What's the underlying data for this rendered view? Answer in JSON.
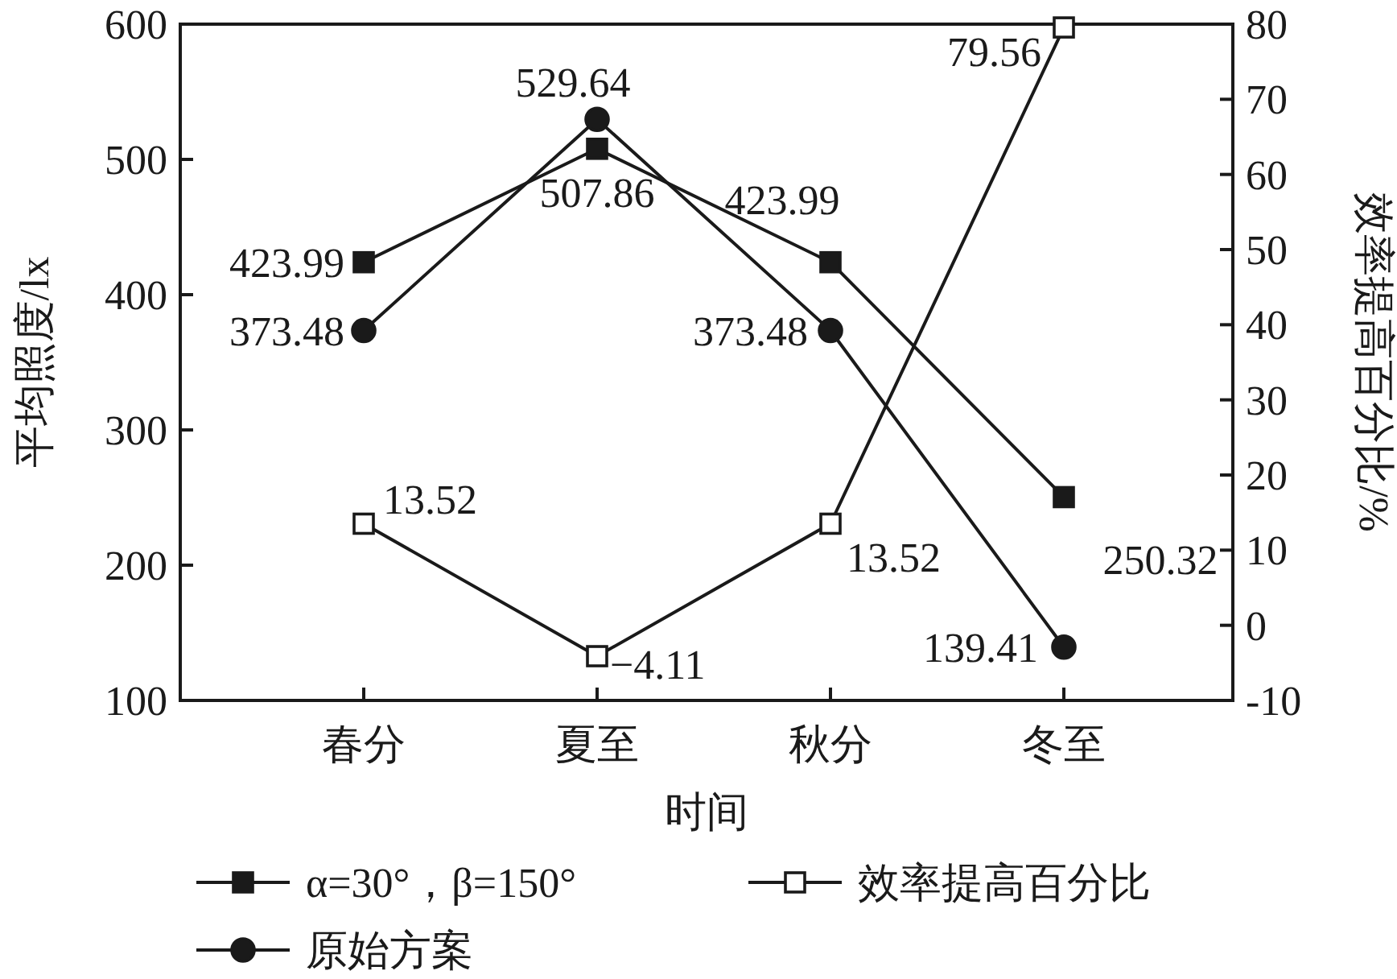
{
  "chart_data": {
    "type": "line",
    "xlabel": "时间",
    "ylabel": "平均照度/lx",
    "y2label": "效率提高百分比/%",
    "categories": [
      "春分",
      "夏至",
      "秋分",
      "冬至"
    ],
    "series": [
      {
        "name": "α=30°，β=150°",
        "color": "#1a1a1a",
        "marker": "square",
        "values": [
          423.99,
          507.86,
          423.99,
          250.32
        ]
      },
      {
        "name": "效率提高百分比",
        "color": "#1a1a1a",
        "marker": "square",
        "axis": "y2",
        "values": [
          13.52,
          -4.11,
          13.52,
          79.56
        ]
      },
      {
        "name": "原始方案",
        "color": "#1a1a1a",
        "marker": "circle",
        "values": [
          373.48,
          529.64,
          373.48,
          139.41
        ]
      }
    ],
    "ylim": [
      100,
      600
    ],
    "yticks": [
      100,
      200,
      300,
      400,
      500,
      600
    ],
    "y2lim": [
      -10,
      80
    ],
    "y2ticks": [
      -10,
      0,
      10,
      20,
      30,
      40,
      50,
      60,
      70,
      80
    ],
    "data_labels": true,
    "legend": "bottom"
  }
}
